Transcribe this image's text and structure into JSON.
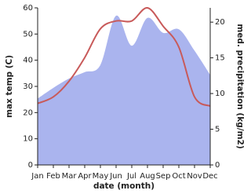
{
  "chart_data": {
    "type": "line-area",
    "x_label": "date (month)",
    "y_label": "max temp (C)",
    "y2_label": "med. precipitation (kg/m2)",
    "categories": [
      "Jan",
      "Feb",
      "Mar",
      "Apr",
      "May",
      "Jun",
      "Jul",
      "Aug",
      "Sep",
      "Oct",
      "Nov",
      "Dec"
    ],
    "series": [
      {
        "name": "max temp",
        "type": "line",
        "color": "#c85a5a",
        "values": [
          23.5,
          26,
          32,
          41,
          52,
          55,
          55,
          60,
          53,
          45,
          26,
          22.5
        ]
      },
      {
        "name": "med. precipitation",
        "type": "area",
        "axis": "y2",
        "color": "#aab4ee",
        "values": [
          9.3,
          10.8,
          12.1,
          13,
          14,
          20.9,
          16.7,
          20.6,
          18.5,
          19,
          16,
          12.6
        ]
      }
    ],
    "ylim": [
      0,
      60
    ],
    "yticks": [
      0,
      10,
      20,
      30,
      40,
      50,
      60
    ],
    "y2lim": [
      0,
      22
    ],
    "y2ticks": [
      0,
      5,
      10,
      15,
      20
    ]
  }
}
